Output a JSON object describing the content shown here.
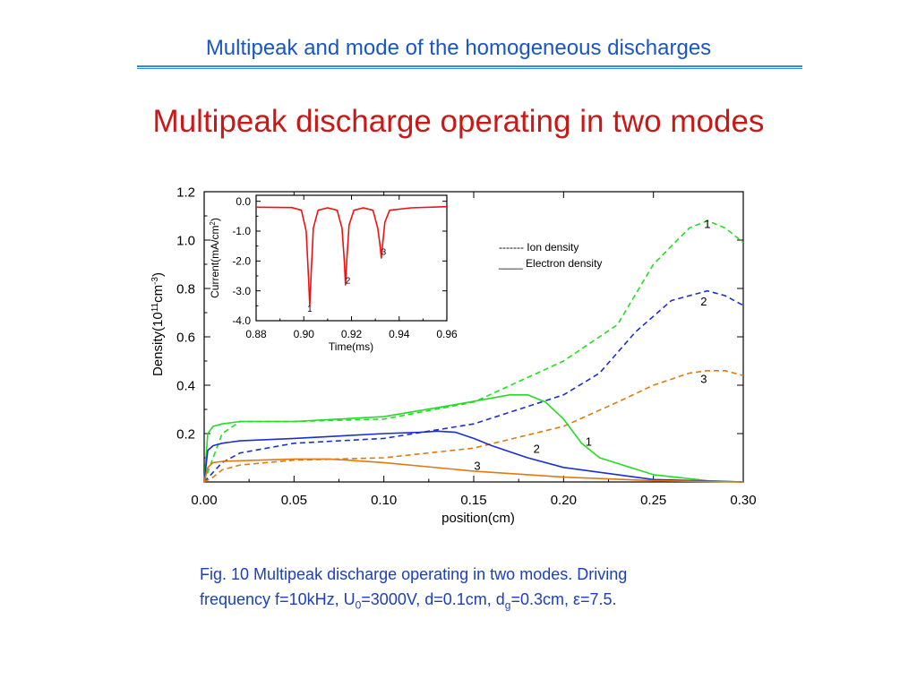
{
  "header": {
    "title": "Multipeak and mode of the homogeneous discharges"
  },
  "slide": {
    "title": "Multipeak discharge operating in two modes"
  },
  "caption": {
    "line1": "Fig. 10  Multipeak discharge operating in two modes. Driving",
    "line2_a": "frequency f=10kHz,  U",
    "line2_sub1": "0",
    "line2_b": "=3000V, d=0.1cm, d",
    "line2_sub2": "g",
    "line2_c": "=0.3cm, ε=7.5."
  },
  "colors": {
    "curve1": "#22dd22",
    "curve2": "#1a2fd0",
    "curve3": "#e07a10",
    "inset_curve": "#ee1111",
    "header": "#1a55c8",
    "title": "#c81818",
    "caption": "#1b3fbf"
  },
  "chart_data": [
    {
      "type": "line",
      "xlabel": "position(cm)",
      "ylabel_main": "Density(10",
      "ylabel_sup1": "11",
      "ylabel_mid": "cm",
      "ylabel_sup2": "-3",
      "ylabel_end": ")",
      "xlim": [
        0,
        0.3
      ],
      "ylim": [
        0,
        1.2
      ],
      "xticks": [
        "0.00",
        "0.05",
        "0.10",
        "0.15",
        "0.20",
        "0.25",
        "0.30"
      ],
      "yticks": [
        "0.2",
        "0.4",
        "0.6",
        "0.8",
        "1.0",
        "1.2"
      ],
      "legend": {
        "ion": "------- Ion density",
        "electron": "____ Electron density"
      },
      "series": [
        {
          "label": "1",
          "kind": "ion",
          "color_key": "curve1",
          "x": [
            0.0,
            0.005,
            0.01,
            0.02,
            0.05,
            0.1,
            0.15,
            0.2,
            0.23,
            0.25,
            0.27,
            0.28,
            0.29,
            0.3
          ],
          "y": [
            0.0,
            0.1,
            0.2,
            0.25,
            0.25,
            0.26,
            0.33,
            0.5,
            0.65,
            0.9,
            1.05,
            1.08,
            1.05,
            0.99
          ]
        },
        {
          "label": "2",
          "kind": "ion",
          "color_key": "curve2",
          "x": [
            0.0,
            0.005,
            0.01,
            0.02,
            0.05,
            0.1,
            0.15,
            0.2,
            0.22,
            0.24,
            0.26,
            0.28,
            0.29,
            0.3
          ],
          "y": [
            0.0,
            0.04,
            0.08,
            0.12,
            0.16,
            0.18,
            0.24,
            0.36,
            0.45,
            0.62,
            0.75,
            0.79,
            0.77,
            0.73
          ]
        },
        {
          "label": "3",
          "kind": "ion",
          "color_key": "curve3",
          "x": [
            0.0,
            0.005,
            0.01,
            0.02,
            0.05,
            0.1,
            0.15,
            0.2,
            0.23,
            0.25,
            0.27,
            0.28,
            0.29,
            0.3
          ],
          "y": [
            0.0,
            0.02,
            0.05,
            0.07,
            0.09,
            0.1,
            0.14,
            0.23,
            0.33,
            0.4,
            0.45,
            0.46,
            0.46,
            0.44
          ]
        },
        {
          "label": "1",
          "kind": "electron",
          "color_key": "curve1",
          "x": [
            0.0,
            0.002,
            0.005,
            0.01,
            0.02,
            0.05,
            0.1,
            0.14,
            0.17,
            0.18,
            0.19,
            0.2,
            0.21,
            0.22,
            0.25,
            0.28,
            0.3
          ],
          "y": [
            0.0,
            0.2,
            0.23,
            0.24,
            0.25,
            0.25,
            0.27,
            0.32,
            0.36,
            0.36,
            0.33,
            0.26,
            0.16,
            0.1,
            0.03,
            0.005,
            0.0
          ]
        },
        {
          "label": "2",
          "kind": "electron",
          "color_key": "curve2",
          "x": [
            0.0,
            0.002,
            0.005,
            0.01,
            0.02,
            0.05,
            0.1,
            0.12,
            0.13,
            0.14,
            0.15,
            0.16,
            0.18,
            0.2,
            0.25,
            0.3
          ],
          "y": [
            0.0,
            0.13,
            0.15,
            0.16,
            0.17,
            0.18,
            0.2,
            0.205,
            0.21,
            0.205,
            0.18,
            0.15,
            0.1,
            0.06,
            0.01,
            0.0
          ]
        },
        {
          "label": "3",
          "kind": "electron",
          "color_key": "curve3",
          "x": [
            0.0,
            0.002,
            0.005,
            0.01,
            0.03,
            0.05,
            0.07,
            0.1,
            0.15,
            0.2,
            0.25,
            0.3
          ],
          "y": [
            0.0,
            0.06,
            0.08,
            0.085,
            0.09,
            0.095,
            0.095,
            0.08,
            0.045,
            0.02,
            0.005,
            0.0
          ]
        }
      ],
      "curve_labels": [
        {
          "text": "1",
          "x": 0.28,
          "y": 1.05
        },
        {
          "text": "2",
          "x": 0.278,
          "y": 0.73
        },
        {
          "text": "3",
          "x": 0.278,
          "y": 0.41
        },
        {
          "text": "1",
          "x": 0.214,
          "y": 0.15
        },
        {
          "text": "2",
          "x": 0.185,
          "y": 0.12
        },
        {
          "text": "3",
          "x": 0.152,
          "y": 0.05
        }
      ]
    },
    {
      "type": "line",
      "xlabel": "Time(ms)",
      "ylabel_main": "Current(mA/cm",
      "ylabel_sup": "2",
      "ylabel_end": ")",
      "xlim": [
        0.88,
        0.96
      ],
      "ylim": [
        -4.0,
        0.2
      ],
      "xticks": [
        "0.88",
        "0.90",
        "0.92",
        "0.94",
        "0.96"
      ],
      "yticks": [
        "0.0",
        "-1.0",
        "-2.0",
        "-3.0",
        "-4.0"
      ],
      "series": [
        {
          "label": "current",
          "color_key": "inset_curve",
          "x": [
            0.88,
            0.895,
            0.899,
            0.901,
            0.902,
            0.9025,
            0.903,
            0.904,
            0.906,
            0.91,
            0.914,
            0.916,
            0.917,
            0.9175,
            0.918,
            0.919,
            0.921,
            0.925,
            0.929,
            0.931,
            0.932,
            0.9325,
            0.933,
            0.934,
            0.936,
            0.945,
            0.96
          ],
          "y": [
            -0.2,
            -0.21,
            -0.3,
            -1.0,
            -2.6,
            -3.5,
            -2.6,
            -0.9,
            -0.3,
            -0.22,
            -0.3,
            -0.9,
            -2.0,
            -2.8,
            -2.0,
            -0.8,
            -0.3,
            -0.22,
            -0.3,
            -0.9,
            -1.5,
            -1.9,
            -1.5,
            -0.7,
            -0.3,
            -0.22,
            -0.18
          ]
        }
      ],
      "curve_labels": [
        {
          "text": "1",
          "x": 0.9025,
          "y": -3.7
        },
        {
          "text": "2",
          "x": 0.9185,
          "y": -2.75
        },
        {
          "text": "3",
          "x": 0.9335,
          "y": -1.8
        }
      ]
    }
  ]
}
